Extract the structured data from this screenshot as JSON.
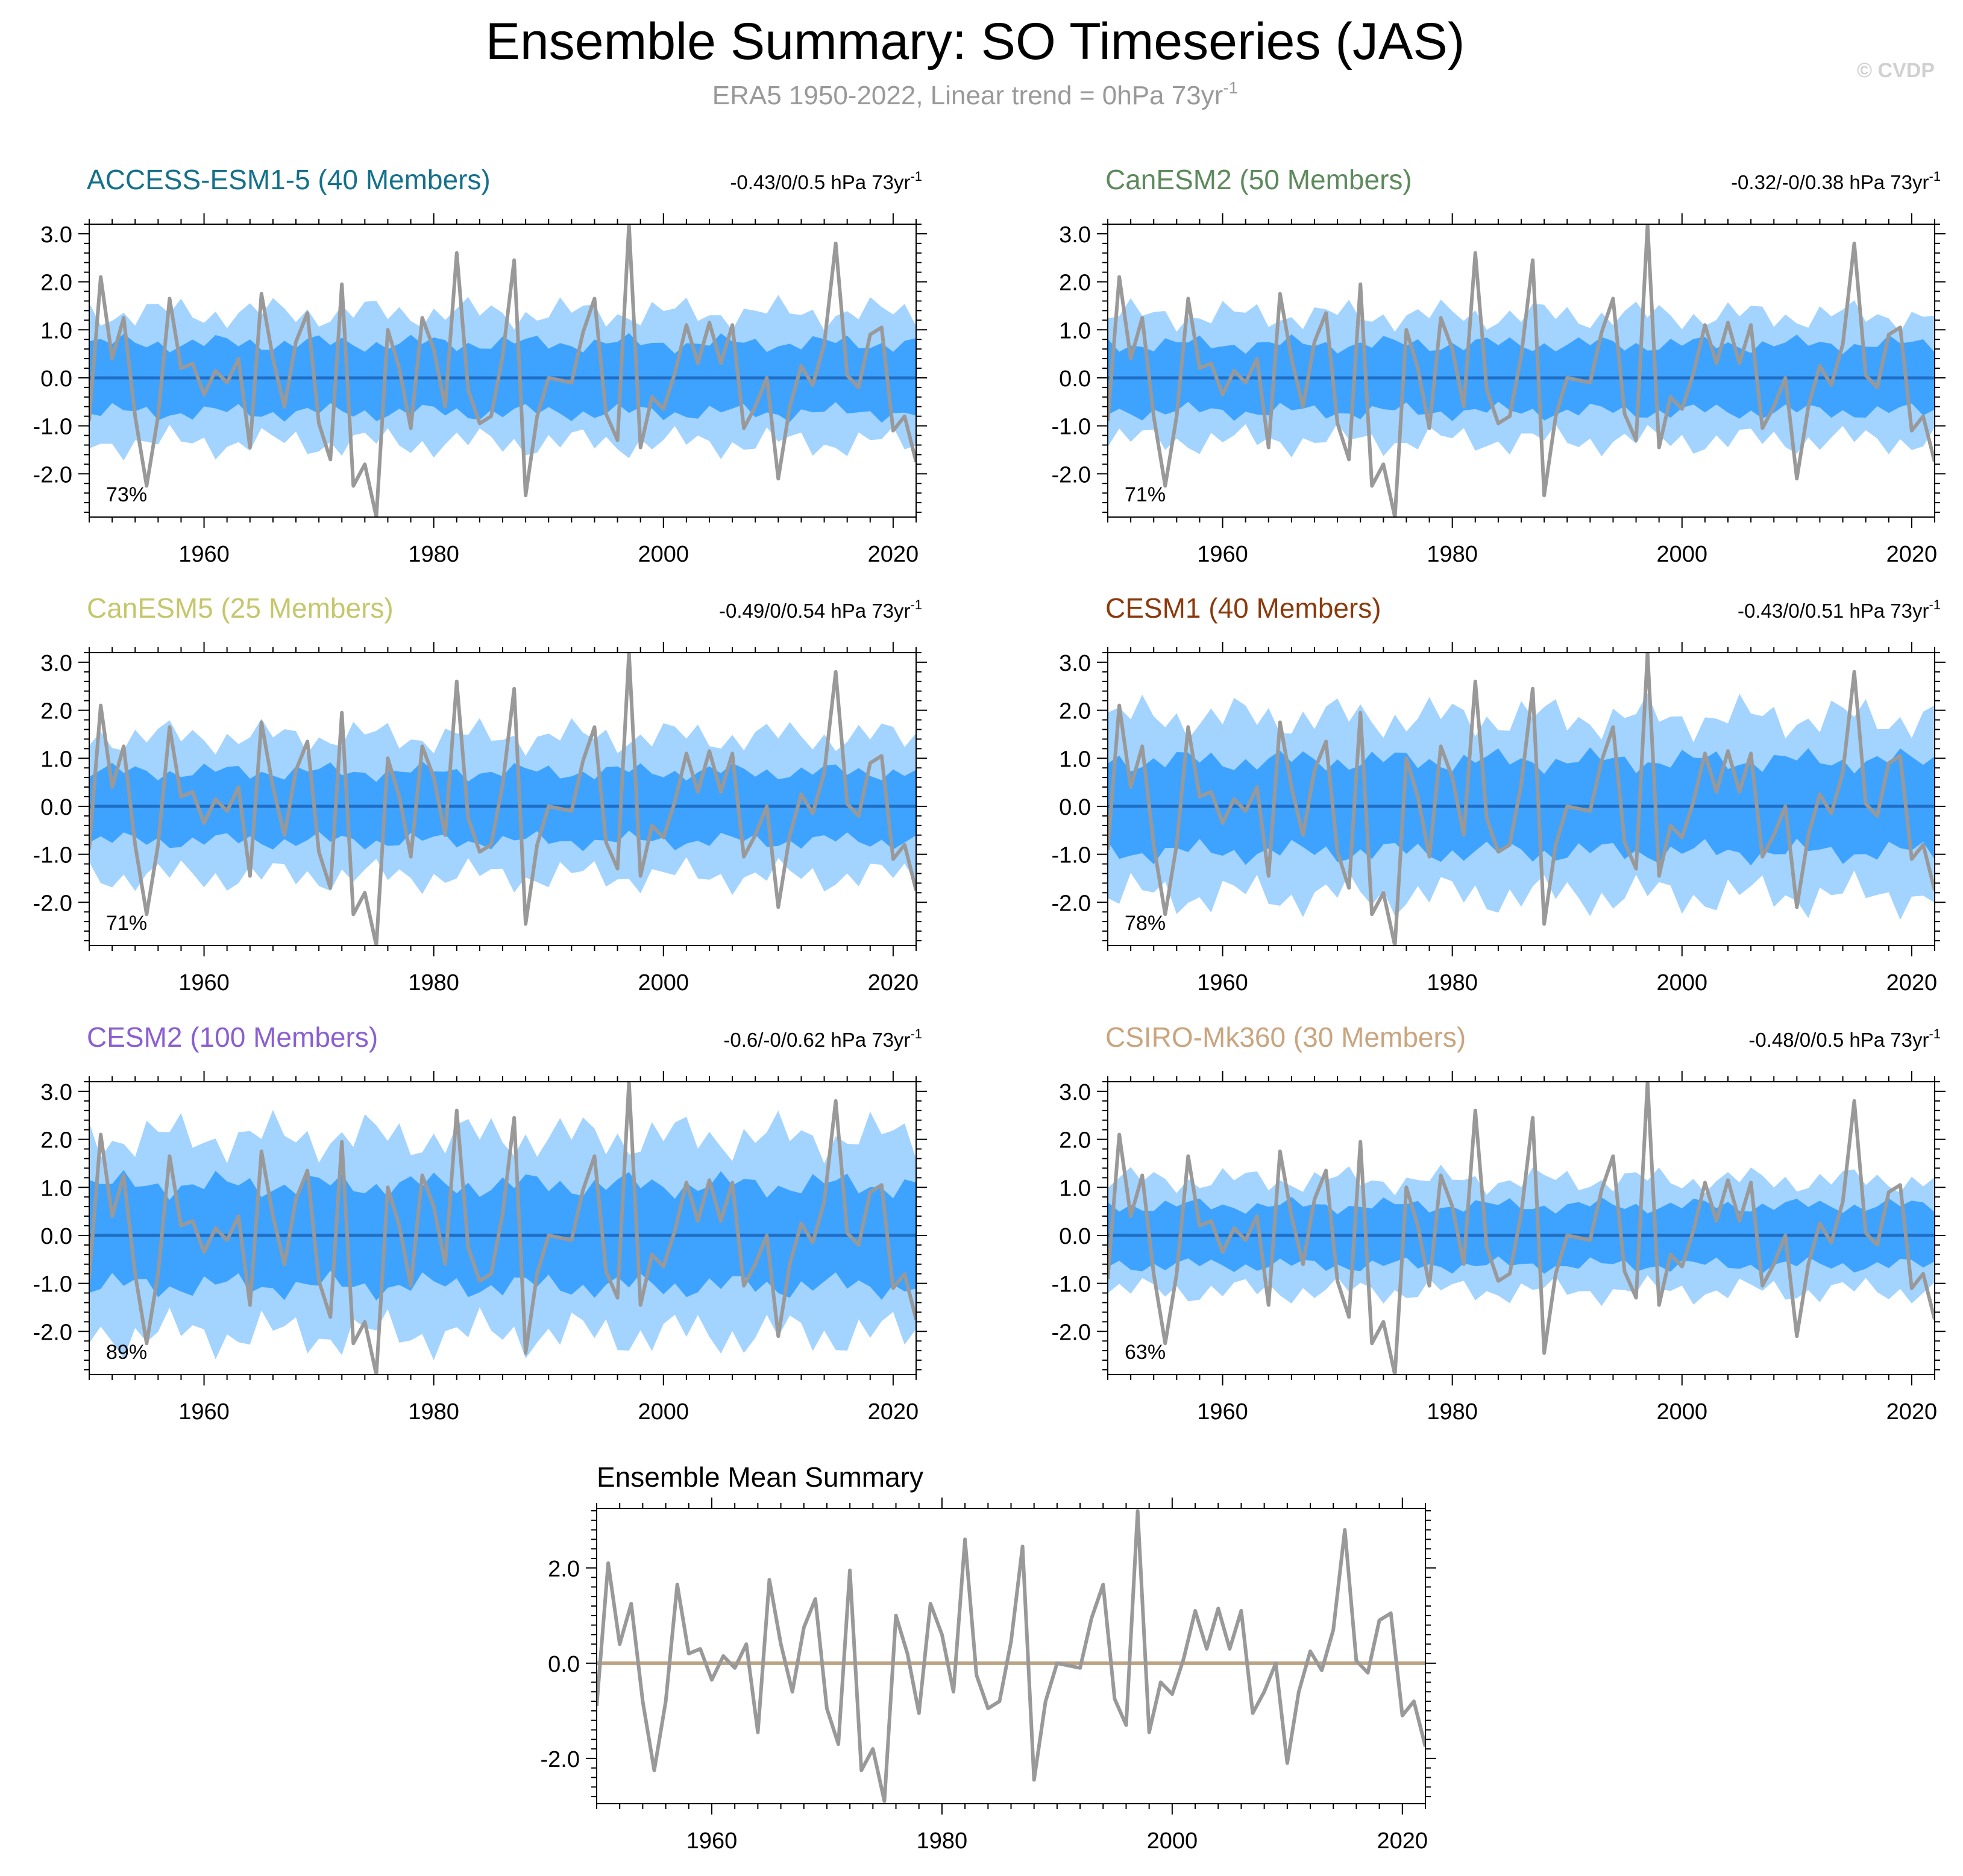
{
  "title": "Ensemble Summary: SO Timeseries (JAS)",
  "subtitle": "ERA5 1950-2022, Linear trend = 0hPa 73yr",
  "subtitle_sup": "-1",
  "copyright": "© CVDP",
  "colors": {
    "obs_line": "#999999",
    "outer_band": "#a3d3ff",
    "inner_band": "#3ea3ff",
    "ens_mean_line": "#1f6fc4",
    "summary_mean_line": "#bba383"
  },
  "chart_data": [
    {
      "type": "line",
      "model": "ACCESS-ESM1-5 (40 Members)",
      "model_color": "#15718b",
      "trend": "-0.43/0/0.5 hPa 73yr",
      "trend_sup": "-1",
      "percent": "73%",
      "inner_half": 0.72,
      "outer_half": 1.35,
      "xlim": [
        1950,
        2022
      ],
      "ylim": [
        -2.9,
        3.2
      ],
      "xticks": [
        1960,
        1980,
        2000,
        2020
      ],
      "yticks": [
        3.0,
        2.0,
        1.0,
        0.0,
        -1.0,
        -2.0
      ],
      "yticklabels": [
        "3.0",
        "2.0",
        "1.0",
        "0.0",
        "-1.0",
        "-2.0"
      ]
    },
    {
      "type": "line",
      "model": "CanESM2 (50 Members)",
      "model_color": "#5d8a5d",
      "trend": "-0.32/-0/0.38 hPa 73yr",
      "trend_sup": "-1",
      "percent": "71%",
      "inner_half": 0.7,
      "outer_half": 1.3,
      "xlim": [
        1950,
        2022
      ],
      "ylim": [
        -2.9,
        3.2
      ],
      "xticks": [
        1960,
        1980,
        2000,
        2020
      ],
      "yticks": [
        3.0,
        2.0,
        1.0,
        0.0,
        -1.0,
        -2.0
      ],
      "yticklabels": [
        "3.0",
        "2.0",
        "1.0",
        "0.0",
        "-1.0",
        "-2.0"
      ]
    },
    {
      "type": "line",
      "model": "CanESM5 (25 Members)",
      "model_color": "#c6c66b",
      "trend": "-0.49/0/0.54 hPa 73yr",
      "trend_sup": "-1",
      "percent": "71%",
      "inner_half": 0.72,
      "outer_half": 1.45,
      "xlim": [
        1950,
        2022
      ],
      "ylim": [
        -2.9,
        3.2
      ],
      "xticks": [
        1960,
        1980,
        2000,
        2020
      ],
      "yticks": [
        3.0,
        2.0,
        1.0,
        0.0,
        -1.0,
        -2.0
      ],
      "yticklabels": [
        "3.0",
        "2.0",
        "1.0",
        "0.0",
        "-1.0",
        "-2.0"
      ]
    },
    {
      "type": "line",
      "model": "CESM1 (40 Members)",
      "model_color": "#8b3a0c",
      "trend": "-0.43/0/0.51 hPa 73yr",
      "trend_sup": "-1",
      "percent": "78%",
      "inner_half": 0.95,
      "outer_half": 1.85,
      "xlim": [
        1950,
        2022
      ],
      "ylim": [
        -2.9,
        3.2
      ],
      "xticks": [
        1960,
        1980,
        2000,
        2020
      ],
      "yticks": [
        3.0,
        2.0,
        1.0,
        0.0,
        -1.0,
        -2.0
      ],
      "yticklabels": [
        "3.0",
        "2.0",
        "1.0",
        "0.0",
        "-1.0",
        "-2.0"
      ]
    },
    {
      "type": "line",
      "model": "CESM2 (100 Members)",
      "model_color": "#8a5fd1",
      "trend": "-0.6/-0/0.62 hPa 73yr",
      "trend_sup": "-1",
      "percent": "89%",
      "inner_half": 1.05,
      "outer_half": 2.05,
      "xlim": [
        1950,
        2022
      ],
      "ylim": [
        -2.9,
        3.2
      ],
      "xticks": [
        1960,
        1980,
        2000,
        2020
      ],
      "yticks": [
        3.0,
        2.0,
        1.0,
        0.0,
        -1.0,
        -2.0
      ],
      "yticklabels": [
        "3.0",
        "2.0",
        "1.0",
        "0.0",
        "-1.0",
        "-2.0"
      ]
    },
    {
      "type": "line",
      "model": "CSIRO-Mk360 (30 Members)",
      "model_color": "#c9a57f",
      "trend": "-0.48/0/0.5 hPa 73yr",
      "trend_sup": "-1",
      "percent": "63%",
      "inner_half": 0.62,
      "outer_half": 1.15,
      "xlim": [
        1950,
        2022
      ],
      "ylim": [
        -2.9,
        3.2
      ],
      "xticks": [
        1960,
        1980,
        2000,
        2020
      ],
      "yticks": [
        3.0,
        2.0,
        1.0,
        0.0,
        -1.0,
        -2.0
      ],
      "yticklabels": [
        "3.0",
        "2.0",
        "1.0",
        "0.0",
        "-1.0",
        "-2.0"
      ]
    },
    {
      "type": "line",
      "model": "Ensemble Mean Summary",
      "model_color": "#000000",
      "xlim": [
        1950,
        2022
      ],
      "ylim": [
        -2.95,
        3.25
      ],
      "xticks": [
        1960,
        1980,
        2000,
        2020
      ],
      "yticks": [
        2.0,
        0.0,
        -2.0
      ],
      "yticklabels": [
        "2.0",
        "0.0",
        "-2.0"
      ]
    }
  ],
  "observed": {
    "years_start": 1950,
    "values": [
      -0.9,
      2.1,
      0.4,
      1.25,
      -0.8,
      -2.25,
      -0.8,
      1.65,
      0.2,
      0.3,
      -0.35,
      0.15,
      -0.1,
      0.4,
      -1.45,
      1.75,
      0.4,
      -0.6,
      0.75,
      1.35,
      -0.95,
      -1.7,
      1.95,
      -2.25,
      -1.8,
      -2.9,
      1.0,
      0.2,
      -1.05,
      1.25,
      0.6,
      -0.6,
      2.6,
      -0.25,
      -0.95,
      -0.8,
      0.45,
      2.45,
      -2.45,
      -0.8,
      0.0,
      -0.05,
      -0.1,
      0.95,
      1.65,
      -0.75,
      -1.3,
      3.2,
      -1.45,
      -0.4,
      -0.65,
      0.1,
      1.1,
      0.3,
      1.15,
      0.3,
      1.1,
      -1.05,
      -0.6,
      0.0,
      -2.1,
      -0.6,
      0.25,
      -0.15,
      0.7,
      2.8,
      0.05,
      -0.2,
      0.9,
      1.05,
      -1.1,
      -0.8,
      -1.75
    ]
  }
}
